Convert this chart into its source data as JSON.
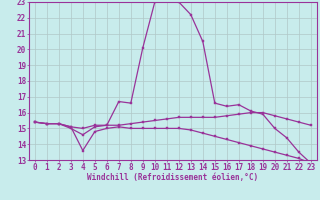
{
  "xlabel": "Windchill (Refroidissement éolien,°C)",
  "xlim": [
    -0.5,
    23.5
  ],
  "ylim": [
    13,
    23
  ],
  "yticks": [
    13,
    14,
    15,
    16,
    17,
    18,
    19,
    20,
    21,
    22,
    23
  ],
  "xticks": [
    0,
    1,
    2,
    3,
    4,
    5,
    6,
    7,
    8,
    9,
    10,
    11,
    12,
    13,
    14,
    15,
    16,
    17,
    18,
    19,
    20,
    21,
    22,
    23
  ],
  "background_color": "#c8ecec",
  "grid_color": "#b0c8c8",
  "line_color": "#993399",
  "line1_x": [
    0,
    1,
    2,
    3,
    4,
    5,
    6,
    7,
    8,
    9,
    10,
    11,
    12,
    13,
    14,
    15,
    16,
    17,
    18,
    19,
    20,
    21,
    22,
    23
  ],
  "line1_y": [
    15.4,
    15.3,
    15.3,
    15.0,
    14.6,
    15.1,
    15.2,
    16.7,
    16.6,
    20.1,
    23.0,
    23.1,
    23.0,
    22.2,
    20.5,
    16.6,
    16.4,
    16.5,
    16.1,
    15.9,
    15.0,
    14.4,
    13.5,
    12.8
  ],
  "line2_x": [
    0,
    1,
    2,
    3,
    4,
    5,
    6,
    7,
    8,
    9,
    10,
    11,
    12,
    13,
    14,
    15,
    16,
    17,
    18,
    19,
    20,
    21,
    22,
    23
  ],
  "line2_y": [
    15.4,
    15.3,
    15.3,
    15.1,
    15.0,
    15.2,
    15.2,
    15.2,
    15.3,
    15.4,
    15.5,
    15.6,
    15.7,
    15.7,
    15.7,
    15.7,
    15.8,
    15.9,
    16.0,
    16.0,
    15.8,
    15.6,
    15.4,
    15.2
  ],
  "line3_x": [
    0,
    1,
    2,
    3,
    4,
    5,
    6,
    7,
    8,
    9,
    10,
    11,
    12,
    13,
    14,
    15,
    16,
    17,
    18,
    19,
    20,
    21,
    22,
    23
  ],
  "line3_y": [
    15.4,
    15.3,
    15.3,
    15.1,
    13.6,
    14.8,
    15.0,
    15.1,
    15.0,
    15.0,
    15.0,
    15.0,
    15.0,
    14.9,
    14.7,
    14.5,
    14.3,
    14.1,
    13.9,
    13.7,
    13.5,
    13.3,
    13.1,
    12.8
  ],
  "tick_fontsize": 5.5,
  "xlabel_fontsize": 5.5,
  "marker_size": 1.8,
  "linewidth": 0.9
}
